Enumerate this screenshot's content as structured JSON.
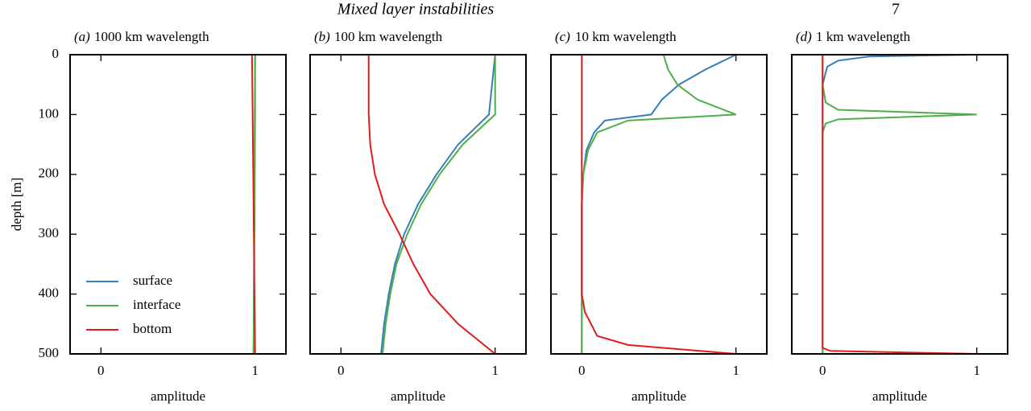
{
  "header": {
    "title": "Mixed layer instabilities",
    "page": "7"
  },
  "chart_data": [
    {
      "type": "line",
      "label": "(a)",
      "title": "1000 km wavelength",
      "xlabel": "amplitude",
      "ylabel": "depth [m]",
      "xlim": [
        -0.2,
        1.2
      ],
      "xticks": [
        0,
        1
      ],
      "ylim": [
        500,
        0
      ],
      "yticks": [
        0,
        100,
        200,
        300,
        400,
        500
      ],
      "legend": "lower left",
      "y": [
        0,
        100,
        200,
        300,
        400,
        500
      ],
      "series": [
        {
          "name": "surface",
          "color": "#377eb8",
          "values": [
            1.0,
            0.998,
            0.996,
            0.994,
            0.992,
            0.99
          ]
        },
        {
          "name": "interface",
          "color": "#4daf4a",
          "values": [
            1.0,
            1.0,
            0.998,
            0.996,
            0.993,
            0.99
          ]
        },
        {
          "name": "bottom",
          "color": "#e41a1c",
          "values": [
            0.98,
            0.984,
            0.988,
            0.992,
            0.996,
            1.0
          ]
        }
      ]
    },
    {
      "type": "line",
      "label": "(b)",
      "title": "100 km wavelength",
      "xlabel": "amplitude",
      "xlim": [
        -0.2,
        1.2
      ],
      "xticks": [
        0,
        1
      ],
      "ylim": [
        500,
        0
      ],
      "yticks": [
        0,
        100,
        200,
        300,
        400,
        500
      ],
      "show_ytick_labels": false,
      "y": [
        0,
        100,
        150,
        200,
        250,
        300,
        350,
        400,
        450,
        500
      ],
      "series": [
        {
          "color": "#377eb8",
          "values": [
            1.0,
            0.96,
            0.76,
            0.62,
            0.5,
            0.41,
            0.35,
            0.31,
            0.28,
            0.26
          ]
        },
        {
          "color": "#4daf4a",
          "values": [
            1.0,
            1.0,
            0.79,
            0.64,
            0.52,
            0.43,
            0.36,
            0.32,
            0.29,
            0.27
          ]
        },
        {
          "color": "#e41a1c",
          "values": [
            0.18,
            0.18,
            0.19,
            0.22,
            0.28,
            0.38,
            0.47,
            0.58,
            0.76,
            1.0
          ]
        }
      ]
    },
    {
      "type": "line",
      "label": "(c)",
      "title": "10 km wavelength",
      "xlabel": "amplitude",
      "xlim": [
        -0.2,
        1.2
      ],
      "xticks": [
        0,
        1
      ],
      "ylim": [
        500,
        0
      ],
      "yticks": [
        0,
        100,
        200,
        300,
        400,
        500
      ],
      "show_ytick_labels": false,
      "y": [
        0,
        25,
        50,
        75,
        100,
        110,
        130,
        160,
        200,
        250,
        400,
        430,
        470,
        485,
        500
      ],
      "series": [
        {
          "color": "#377eb8",
          "values": [
            1.0,
            0.8,
            0.63,
            0.52,
            0.45,
            0.15,
            0.08,
            0.03,
            0.01,
            0.0,
            0.0,
            0.0,
            0.0,
            0.0,
            0.0
          ]
        },
        {
          "color": "#4daf4a",
          "values": [
            0.53,
            0.56,
            0.62,
            0.75,
            1.0,
            0.3,
            0.1,
            0.04,
            0.01,
            0.0,
            0.0,
            0.0,
            0.0,
            0.0,
            0.0
          ]
        },
        {
          "color": "#e41a1c",
          "values": [
            0.0,
            0.0,
            0.0,
            0.0,
            0.0,
            0.0,
            0.0,
            0.0,
            0.0,
            0.0,
            0.0,
            0.02,
            0.1,
            0.3,
            1.0
          ]
        }
      ]
    },
    {
      "type": "line",
      "label": "(d)",
      "title": "1 km wavelength",
      "xlabel": "amplitude",
      "xlim": [
        -0.2,
        1.2
      ],
      "xticks": [
        0,
        1
      ],
      "ylim": [
        500,
        0
      ],
      "yticks": [
        0,
        100,
        200,
        300,
        400,
        500
      ],
      "show_ytick_labels": false,
      "y": [
        0,
        3,
        10,
        20,
        50,
        80,
        92,
        100,
        108,
        115,
        130,
        490,
        495,
        500
      ],
      "series": [
        {
          "color": "#377eb8",
          "values": [
            1.0,
            0.3,
            0.1,
            0.03,
            0.0,
            0.0,
            0.0,
            0.0,
            0.0,
            0.0,
            0.0,
            0.0,
            0.0,
            0.0
          ]
        },
        {
          "color": "#4daf4a",
          "values": [
            0.0,
            0.0,
            0.0,
            0.0,
            0.0,
            0.02,
            0.1,
            1.0,
            0.1,
            0.02,
            0.0,
            0.0,
            0.0,
            0.0
          ]
        },
        {
          "color": "#e41a1c",
          "values": [
            0.0,
            0.0,
            0.0,
            0.0,
            0.0,
            0.0,
            0.0,
            0.0,
            0.0,
            0.0,
            0.0,
            0.0,
            0.05,
            1.0
          ]
        }
      ]
    }
  ]
}
